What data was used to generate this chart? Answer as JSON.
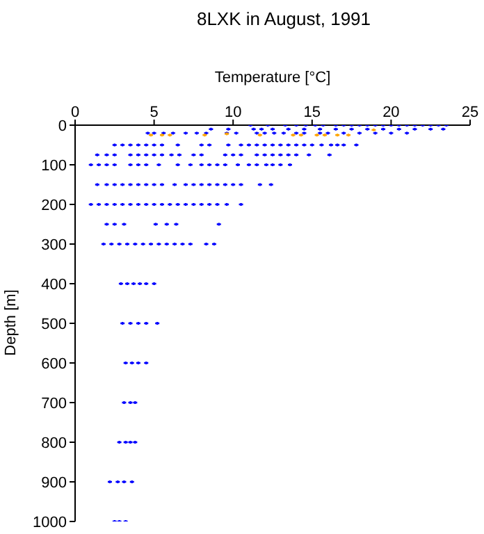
{
  "chart_data": {
    "type": "scatter",
    "title": "8LXK in August, 1991",
    "xlabel": "Temperature [°C]",
    "ylabel": "Depth [m]",
    "xlim": [
      0,
      25
    ],
    "xticks": [
      0,
      5,
      10,
      15,
      20,
      25
    ],
    "ylim": [
      1000,
      0
    ],
    "yticks": [
      0,
      100,
      200,
      300,
      400,
      500,
      600,
      700,
      800,
      900,
      1000
    ],
    "grid": false,
    "marker": "cross",
    "series": [
      {
        "color": "#0000ff",
        "x": [
          11.1,
          12.2,
          13.3,
          14.0,
          14.6,
          15.2,
          15.7,
          16.5,
          17.0,
          17.5,
          18.0,
          18.5,
          19.0,
          19.5,
          20.0,
          20.5,
          21.0,
          21.5,
          22.0,
          22.5,
          23.0,
          23.5,
          8.6,
          9.7,
          11.3,
          11.8,
          12.5,
          13.5,
          14.5,
          15.5,
          16.5,
          17.5,
          18.5,
          19.5,
          20.5,
          21.5,
          22.5,
          23.3,
          4.6,
          5.0,
          5.6,
          6.2,
          7.0,
          7.7,
          8.3,
          9.6,
          10.2,
          11.5,
          12.0,
          12.6,
          13.2,
          14.0,
          14.5,
          15.5,
          16.0,
          17.0,
          18.0,
          19.0,
          20.0,
          21.0,
          2.5,
          3.0,
          3.5,
          4.0,
          4.5,
          5.0,
          5.5,
          6.5,
          8.0,
          8.5,
          9.7,
          10.5,
          11.0,
          11.5,
          12.0,
          12.5,
          13.0,
          13.5,
          14.0,
          14.5,
          15.0,
          15.6,
          16.2,
          16.6,
          17.0,
          17.8,
          1.4,
          2.0,
          2.5,
          3.5,
          4.0,
          4.5,
          5.0,
          5.5,
          6.1,
          6.6,
          7.5,
          8.0,
          9.5,
          10.0,
          10.5,
          11.5,
          12.0,
          12.5,
          13.0,
          13.5,
          14.0,
          14.8,
          16.1,
          1.0,
          1.5,
          2.0,
          2.5,
          3.5,
          4.0,
          4.5,
          5.3,
          6.5,
          7.3,
          8.0,
          8.5,
          9.0,
          9.5,
          10.3,
          11.0,
          11.5,
          12.1,
          12.5,
          13.0,
          13.6,
          1.4,
          2.0,
          2.5,
          3.0,
          3.5,
          4.0,
          4.5,
          5.0,
          5.5,
          6.3,
          7.0,
          7.5,
          8.0,
          8.5,
          9.0,
          9.5,
          10.0,
          10.5,
          11.7,
          12.4,
          1.0,
          1.5,
          2.0,
          2.5,
          3.0,
          3.5,
          4.0,
          4.5,
          5.0,
          5.5,
          6.0,
          6.5,
          7.0,
          7.5,
          8.0,
          8.5,
          9.0,
          9.6,
          10.5,
          2.0,
          2.5,
          3.1,
          5.1,
          5.8,
          6.4,
          9.1,
          1.8,
          2.3,
          2.8,
          3.3,
          3.8,
          4.3,
          4.8,
          5.3,
          5.8,
          6.3,
          6.8,
          7.3,
          8.3,
          8.8,
          2.9,
          3.3,
          3.7,
          4.1,
          4.5,
          5.0,
          3.0,
          3.5,
          4.0,
          4.5,
          5.2,
          3.2,
          3.6,
          4.0,
          4.5,
          3.1,
          3.5,
          3.8,
          2.8,
          3.2,
          3.5,
          3.8,
          2.2,
          2.7,
          3.1,
          3.6,
          2.5,
          2.8,
          3.2
        ],
        "values": [
          0,
          0,
          0,
          0,
          0,
          0,
          0,
          0,
          0,
          0,
          0,
          0,
          0,
          0,
          0,
          0,
          0,
          0,
          0,
          0,
          0,
          0,
          10,
          10,
          10,
          10,
          10,
          10,
          10,
          10,
          10,
          10,
          10,
          10,
          10,
          10,
          10,
          10,
          20,
          20,
          20,
          20,
          20,
          20,
          20,
          20,
          20,
          20,
          20,
          20,
          20,
          20,
          20,
          20,
          20,
          20,
          20,
          20,
          20,
          20,
          50,
          50,
          50,
          50,
          50,
          50,
          50,
          50,
          50,
          50,
          50,
          50,
          50,
          50,
          50,
          50,
          50,
          50,
          50,
          50,
          50,
          50,
          50,
          50,
          50,
          50,
          75,
          75,
          75,
          75,
          75,
          75,
          75,
          75,
          75,
          75,
          75,
          75,
          75,
          75,
          75,
          75,
          75,
          75,
          75,
          75,
          75,
          75,
          75,
          100,
          100,
          100,
          100,
          100,
          100,
          100,
          100,
          100,
          100,
          100,
          100,
          100,
          100,
          100,
          100,
          100,
          100,
          100,
          100,
          100,
          150,
          150,
          150,
          150,
          150,
          150,
          150,
          150,
          150,
          150,
          150,
          150,
          150,
          150,
          150,
          150,
          150,
          150,
          150,
          150,
          200,
          200,
          200,
          200,
          200,
          200,
          200,
          200,
          200,
          200,
          200,
          200,
          200,
          200,
          200,
          200,
          200,
          200,
          200,
          250,
          250,
          250,
          250,
          250,
          250,
          250,
          300,
          300,
          300,
          300,
          300,
          300,
          300,
          300,
          300,
          300,
          300,
          300,
          300,
          300,
          400,
          400,
          400,
          400,
          400,
          400,
          500,
          500,
          500,
          500,
          500,
          600,
          600,
          600,
          600,
          700,
          700,
          700,
          800,
          800,
          800,
          800,
          900,
          900,
          900,
          900,
          1000,
          1000,
          1000
        ]
      },
      {
        "color": "#ffa500",
        "x": [
          4.8,
          5.5,
          6.0,
          8.2,
          9.6,
          11.7,
          13.8,
          14.3,
          15.3,
          15.8,
          16.6,
          17.3,
          18.9
        ],
        "values": [
          25,
          25,
          25,
          25,
          22,
          25,
          25,
          25,
          25,
          25,
          25,
          25,
          12
        ]
      }
    ]
  }
}
